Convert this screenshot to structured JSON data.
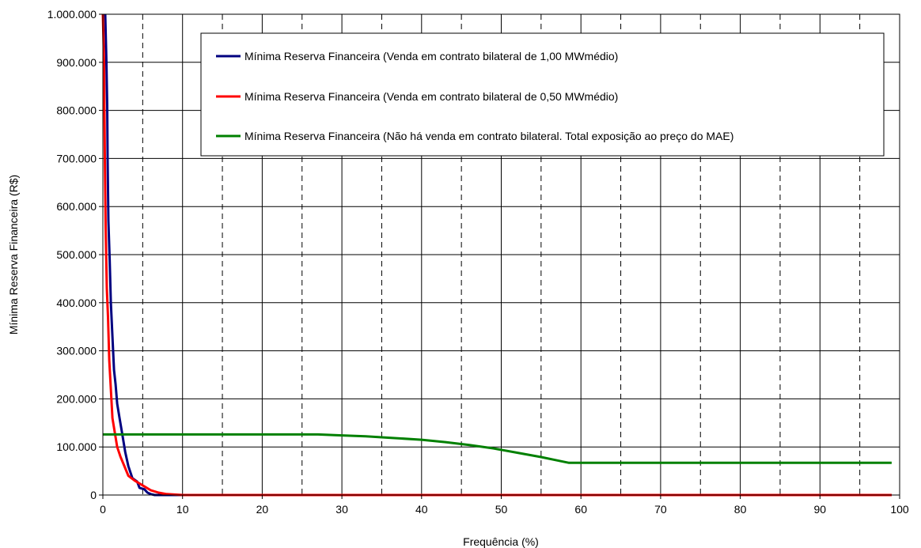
{
  "chart_data": {
    "type": "line",
    "title": "",
    "xlabel": "Frequência (%)",
    "ylabel": "Mínima Reserva Financeira (R$)",
    "xlim": [
      0,
      100
    ],
    "ylim": [
      0,
      1000000
    ],
    "x_ticks": [
      0,
      10,
      20,
      30,
      40,
      50,
      60,
      70,
      80,
      90,
      100
    ],
    "x_tick_labels": [
      "0",
      "10",
      "20",
      "30",
      "40",
      "50",
      "60",
      "70",
      "80",
      "90",
      "100"
    ],
    "y_ticks": [
      0,
      100000,
      200000,
      300000,
      400000,
      500000,
      600000,
      700000,
      800000,
      900000,
      1000000
    ],
    "y_tick_labels": [
      "0",
      "100.000",
      "200.000",
      "300.000",
      "400.000",
      "500.000",
      "600.000",
      "700.000",
      "800.000",
      "900.000",
      "1.000.000"
    ],
    "grid": {
      "horizontal": "solid",
      "vertical_major": "solid",
      "vertical_minor_dashed": [
        5,
        15,
        25,
        35,
        45,
        55,
        65,
        75,
        85,
        95
      ]
    },
    "legend_position": "top-right",
    "series": [
      {
        "name": "Mínima Reserva Financeira (Venda em contrato bilateral de 1,00 MWmédio)",
        "color": "#000080",
        "points": [
          [
            0.3,
            1000000
          ],
          [
            0.45,
            900000
          ],
          [
            0.55,
            810000
          ],
          [
            0.6,
            700000
          ],
          [
            0.7,
            570000
          ],
          [
            0.85,
            490000
          ],
          [
            1.0,
            400000
          ],
          [
            1.2,
            330000
          ],
          [
            1.4,
            260000
          ],
          [
            1.6,
            230000
          ],
          [
            1.8,
            190000
          ],
          [
            2.1,
            160000
          ],
          [
            2.4,
            130000
          ],
          [
            2.8,
            90000
          ],
          [
            3.2,
            60000
          ],
          [
            3.7,
            35000
          ],
          [
            4.3,
            28000
          ],
          [
            4.6,
            15000
          ],
          [
            5.2,
            12000
          ],
          [
            5.6,
            5000
          ],
          [
            6.0,
            2000
          ],
          [
            6.5,
            0
          ],
          [
            99,
            0
          ]
        ]
      },
      {
        "name": "Mínima Reserva Financeira (Venda em contrato bilateral de 0,50 MWmédio)",
        "color": "#ff0000",
        "points": [
          [
            0.0,
            1000000
          ],
          [
            0.15,
            900000
          ],
          [
            0.25,
            700000
          ],
          [
            0.35,
            560000
          ],
          [
            0.5,
            430000
          ],
          [
            0.65,
            370000
          ],
          [
            0.8,
            280000
          ],
          [
            1.0,
            220000
          ],
          [
            1.2,
            160000
          ],
          [
            1.5,
            130000
          ],
          [
            1.8,
            100000
          ],
          [
            2.2,
            80000
          ],
          [
            2.7,
            60000
          ],
          [
            3.2,
            40000
          ],
          [
            4.0,
            30000
          ],
          [
            5.0,
            20000
          ],
          [
            6.0,
            10000
          ],
          [
            7.0,
            5000
          ],
          [
            8.0,
            2000
          ],
          [
            10.0,
            0
          ],
          [
            99,
            0
          ]
        ]
      },
      {
        "name": "Mínima Reserva Financeira (Não há venda em contrato bilateral. Total exposição ao preço do MAE)",
        "color": "#008000",
        "points": [
          [
            0,
            126000
          ],
          [
            10,
            126000
          ],
          [
            20,
            126000
          ],
          [
            27,
            126000
          ],
          [
            30,
            124000
          ],
          [
            33,
            122000
          ],
          [
            36,
            119000
          ],
          [
            40,
            115000
          ],
          [
            43,
            110000
          ],
          [
            46,
            104000
          ],
          [
            49,
            97000
          ],
          [
            52,
            88000
          ],
          [
            55,
            79000
          ],
          [
            57,
            72000
          ],
          [
            58.5,
            67000
          ],
          [
            60,
            67000
          ],
          [
            70,
            67000
          ],
          [
            80,
            67000
          ],
          [
            90,
            67000
          ],
          [
            99,
            67000
          ]
        ]
      }
    ]
  }
}
